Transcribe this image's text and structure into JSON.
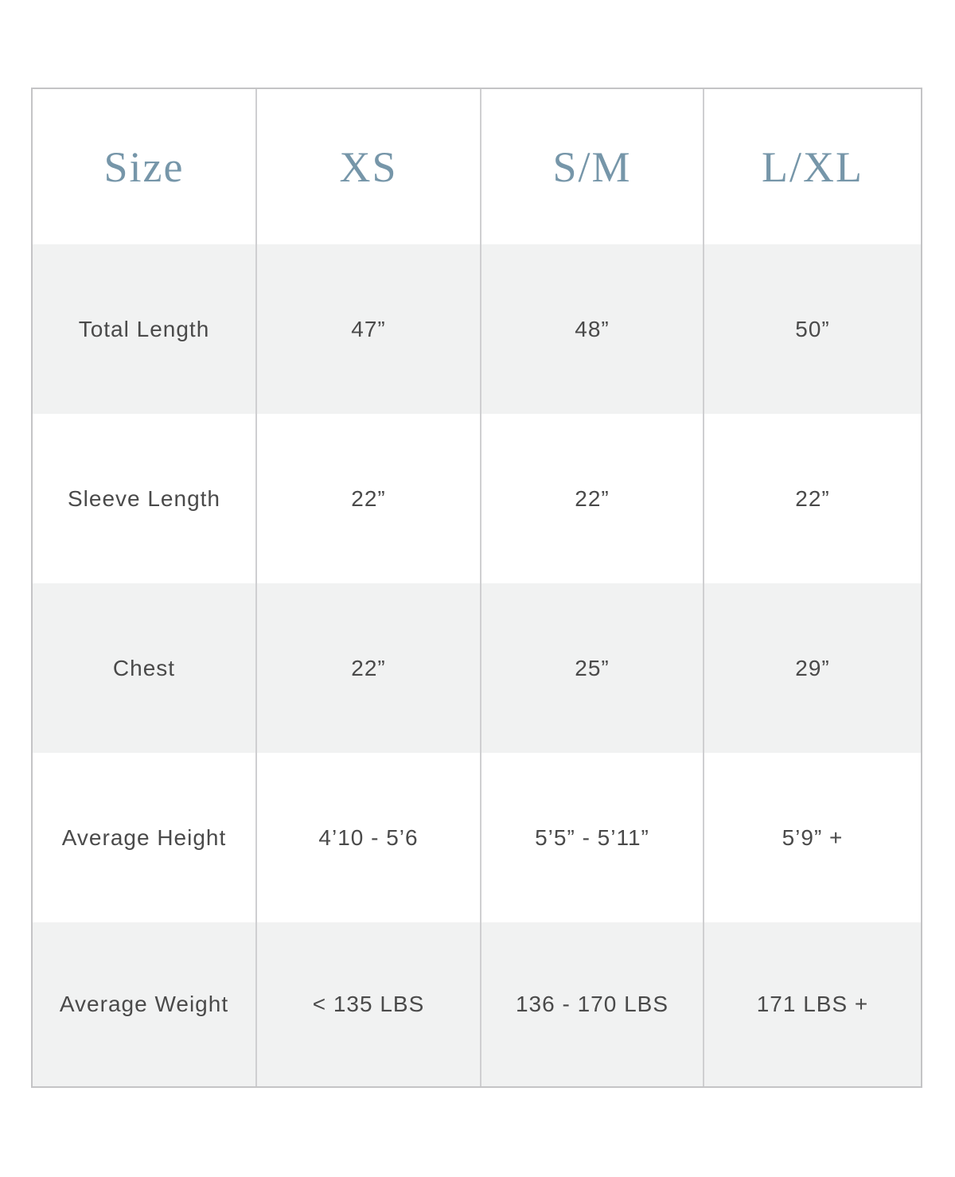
{
  "header": {
    "label": "Size",
    "sizes": [
      "XS",
      "S/M",
      "L/XL"
    ]
  },
  "rows": [
    {
      "label": "Total Length",
      "values": [
        "47”",
        "48”",
        "50”"
      ]
    },
    {
      "label": "Sleeve Length",
      "values": [
        "22”",
        "22”",
        "22”"
      ]
    },
    {
      "label": "Chest",
      "values": [
        "22”",
        "25”",
        "29”"
      ]
    },
    {
      "label": "Average Height",
      "values": [
        "4’10 - 5’6",
        "5’5” - 5’11”",
        "5’9” +"
      ]
    },
    {
      "label": "Average Weight",
      "values": [
        "< 135 LBS",
        "136 - 170 LBS",
        "171 LBS +"
      ]
    }
  ],
  "colors": {
    "header_text": "#7696a9",
    "body_text": "#4a4a4a",
    "shaded_row": "#f1f2f2",
    "border": "#c4c4c6"
  }
}
